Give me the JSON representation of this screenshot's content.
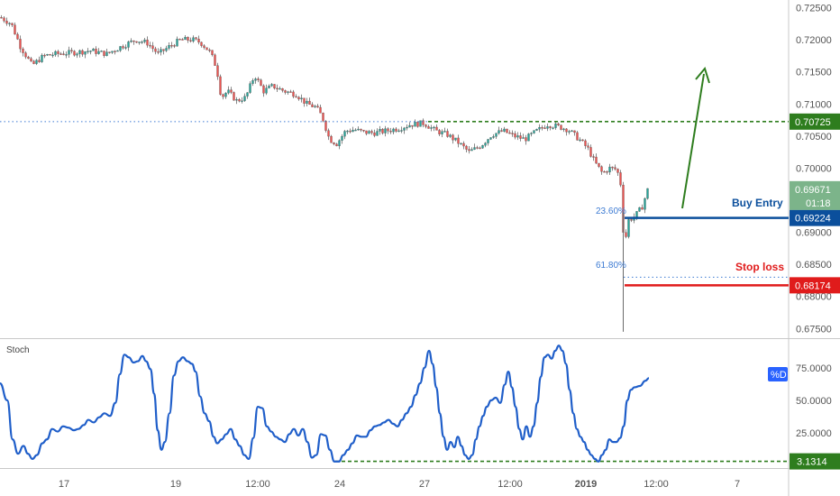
{
  "chart_data": [
    {
      "type": "line",
      "subtype": "candlestick",
      "y_ticks": [
        "0.72500",
        "0.72000",
        "0.71500",
        "0.71000",
        "0.70500",
        "0.70000",
        "0.69500",
        "0.69000",
        "0.68500",
        "0.68000",
        "0.67500"
      ],
      "y_tick_values": [
        0.725,
        0.72,
        0.715,
        0.71,
        0.705,
        0.7,
        0.695,
        0.69,
        0.685,
        0.68,
        0.675
      ],
      "ylim": [
        0.6735,
        0.7262
      ],
      "x_ticks": [
        "17",
        "19",
        "12:00",
        "24",
        "27",
        "12:00",
        "2019",
        "12:00",
        "7"
      ],
      "grid": false,
      "price_path": [
        [
          0,
          0.7235
        ],
        [
          12,
          0.7225
        ],
        [
          22,
          0.719
        ],
        [
          35,
          0.716
        ],
        [
          48,
          0.7175
        ],
        [
          62,
          0.7178
        ],
        [
          80,
          0.718
        ],
        [
          100,
          0.7183
        ],
        [
          118,
          0.7178
        ],
        [
          135,
          0.719
        ],
        [
          150,
          0.72
        ],
        [
          163,
          0.7195
        ],
        [
          175,
          0.7178
        ],
        [
          188,
          0.719
        ],
        [
          200,
          0.72
        ],
        [
          213,
          0.72
        ],
        [
          222,
          0.7196
        ],
        [
          233,
          0.718
        ],
        [
          240,
          0.7155
        ],
        [
          245,
          0.711
        ],
        [
          252,
          0.712
        ],
        [
          262,
          0.7105
        ],
        [
          272,
          0.711
        ],
        [
          282,
          0.7145
        ],
        [
          292,
          0.712
        ],
        [
          302,
          0.7128
        ],
        [
          315,
          0.712
        ],
        [
          328,
          0.7115
        ],
        [
          340,
          0.71
        ],
        [
          350,
          0.7095
        ],
        [
          357,
          0.708
        ],
        [
          365,
          0.7045
        ],
        [
          373,
          0.7038
        ],
        [
          383,
          0.7058
        ],
        [
          393,
          0.706
        ],
        [
          403,
          0.7056
        ],
        [
          415,
          0.7055
        ],
        [
          428,
          0.7058
        ],
        [
          442,
          0.7062
        ],
        [
          455,
          0.7068
        ],
        [
          470,
          0.707
        ],
        [
          483,
          0.7058
        ],
        [
          496,
          0.7052
        ],
        [
          508,
          0.704
        ],
        [
          520,
          0.7025
        ],
        [
          533,
          0.7035
        ],
        [
          545,
          0.7052
        ],
        [
          558,
          0.7058
        ],
        [
          570,
          0.705
        ],
        [
          582,
          0.7045
        ],
        [
          595,
          0.7058
        ],
        [
          607,
          0.7068
        ],
        [
          618,
          0.7065
        ],
        [
          630,
          0.706
        ],
        [
          642,
          0.7045
        ],
        [
          652,
          0.703
        ],
        [
          660,
          0.7008
        ],
        [
          668,
          0.6992
        ],
        [
          676,
          0.7
        ],
        [
          684,
          0.6998
        ],
        [
          689,
          0.697
        ],
        [
          692,
          0.687
        ],
        [
          696,
          0.6918
        ],
        [
          704,
          0.6925
        ],
        [
          712,
          0.694
        ],
        [
          718,
          0.6966
        ]
      ],
      "series": [
        {
          "name": "Buy Entry",
          "value": 0.69224,
          "label": "0.69224",
          "color": "#0b4f9c"
        },
        {
          "name": "Stop loss",
          "value": 0.68174,
          "label": "0.68174",
          "color": "#e01b1b"
        },
        {
          "value": 0.70725,
          "label": "0.70725",
          "color": "#2e7d1e"
        }
      ],
      "current_price": {
        "label": "0.69671",
        "countdown": "01:18",
        "value": 0.69671,
        "color": "#7cb48a"
      },
      "annotations": {
        "fib_23": "23.60%",
        "fib_61": "61.80%",
        "fib_61_value": 0.683,
        "target_arrow_color": "#2e7d1e"
      },
      "candle_up_color": "#26a69a",
      "candle_down_color": "#ef5350"
    },
    {
      "type": "line",
      "title": "Stoch",
      "legend": "%D",
      "y_ticks": [
        "75.0000",
        "50.0000",
        "25.0000"
      ],
      "y_tick_values": [
        75,
        50,
        25
      ],
      "ylim": [
        -2,
        97
      ],
      "level": {
        "value": 3.1314,
        "label": "3.1314"
      },
      "color": "#1f5ec9",
      "values": [
        [
          0,
          63
        ],
        [
          8,
          50
        ],
        [
          14,
          20
        ],
        [
          20,
          9
        ],
        [
          26,
          15
        ],
        [
          31,
          9
        ],
        [
          36,
          5
        ],
        [
          41,
          8
        ],
        [
          47,
          17
        ],
        [
          52,
          20
        ],
        [
          58,
          28
        ],
        [
          64,
          26
        ],
        [
          70,
          30
        ],
        [
          76,
          29
        ],
        [
          82,
          27
        ],
        [
          87,
          28
        ],
        [
          93,
          31
        ],
        [
          98,
          35
        ],
        [
          104,
          33
        ],
        [
          110,
          37
        ],
        [
          116,
          40
        ],
        [
          122,
          38
        ],
        [
          128,
          48
        ],
        [
          133,
          70
        ],
        [
          138,
          85
        ],
        [
          143,
          83
        ],
        [
          148,
          79
        ],
        [
          153,
          80
        ],
        [
          158,
          84
        ],
        [
          162,
          80
        ],
        [
          167,
          74
        ],
        [
          171,
          55
        ],
        [
          175,
          27
        ],
        [
          179,
          12
        ],
        [
          183,
          18
        ],
        [
          188,
          40
        ],
        [
          193,
          69
        ],
        [
          198,
          80
        ],
        [
          203,
          83
        ],
        [
          208,
          80
        ],
        [
          213,
          78
        ],
        [
          217,
          72
        ],
        [
          222,
          53
        ],
        [
          227,
          40
        ],
        [
          232,
          34
        ],
        [
          237,
          22
        ],
        [
          241,
          17
        ],
        [
          246,
          20
        ],
        [
          251,
          24
        ],
        [
          256,
          28
        ],
        [
          261,
          20
        ],
        [
          266,
          15
        ],
        [
          271,
          8
        ],
        [
          276,
          5
        ],
        [
          281,
          21
        ],
        [
          286,
          45
        ],
        [
          291,
          44
        ],
        [
          296,
          30
        ],
        [
          301,
          26
        ],
        [
          306,
          22
        ],
        [
          311,
          20
        ],
        [
          316,
          18
        ],
        [
          321,
          24
        ],
        [
          326,
          28
        ],
        [
          331,
          23
        ],
        [
          336,
          28
        ],
        [
          341,
          18
        ],
        [
          346,
          6
        ],
        [
          351,
          8
        ],
        [
          356,
          24
        ],
        [
          361,
          23
        ],
        [
          366,
          12
        ],
        [
          371,
          3
        ],
        [
          376,
          3
        ],
        [
          381,
          8
        ],
        [
          386,
          12
        ],
        [
          391,
          17
        ],
        [
          396,
          23
        ],
        [
          401,
          22
        ],
        [
          406,
          22
        ],
        [
          411,
          27
        ],
        [
          416,
          30
        ],
        [
          421,
          31
        ],
        [
          426,
          33
        ],
        [
          431,
          35
        ],
        [
          436,
          32
        ],
        [
          441,
          30
        ],
        [
          446,
          35
        ],
        [
          451,
          40
        ],
        [
          456,
          45
        ],
        [
          461,
          54
        ],
        [
          466,
          63
        ],
        [
          471,
          75
        ],
        [
          476,
          88
        ],
        [
          480,
          78
        ],
        [
          484,
          60
        ],
        [
          488,
          40
        ],
        [
          492,
          22
        ],
        [
          496,
          12
        ],
        [
          500,
          18
        ],
        [
          504,
          14
        ],
        [
          508,
          22
        ],
        [
          512,
          15
        ],
        [
          516,
          8
        ],
        [
          520,
          5
        ],
        [
          524,
          8
        ],
        [
          528,
          20
        ],
        [
          532,
          30
        ],
        [
          536,
          38
        ],
        [
          540,
          45
        ],
        [
          545,
          50
        ],
        [
          550,
          52
        ],
        [
          555,
          48
        ],
        [
          560,
          62
        ],
        [
          564,
          72
        ],
        [
          568,
          60
        ],
        [
          572,
          45
        ],
        [
          576,
          28
        ],
        [
          580,
          20
        ],
        [
          584,
          30
        ],
        [
          588,
          22
        ],
        [
          592,
          30
        ],
        [
          596,
          48
        ],
        [
          600,
          68
        ],
        [
          604,
          83
        ],
        [
          608,
          85
        ],
        [
          612,
          82
        ],
        [
          616,
          88
        ],
        [
          620,
          92
        ],
        [
          624,
          88
        ],
        [
          628,
          78
        ],
        [
          632,
          58
        ],
        [
          636,
          40
        ],
        [
          640,
          28
        ],
        [
          644,
          22
        ],
        [
          648,
          18
        ],
        [
          652,
          12
        ],
        [
          656,
          8
        ],
        [
          660,
          5
        ],
        [
          664,
          3
        ],
        [
          668,
          8
        ],
        [
          672,
          12
        ],
        [
          676,
          20
        ],
        [
          680,
          18
        ],
        [
          684,
          18
        ],
        [
          688,
          21
        ],
        [
          692,
          30
        ],
        [
          696,
          50
        ],
        [
          700,
          58
        ],
        [
          704,
          60
        ],
        [
          710,
          61
        ],
        [
          716,
          65
        ],
        [
          720,
          67
        ]
      ]
    }
  ]
}
